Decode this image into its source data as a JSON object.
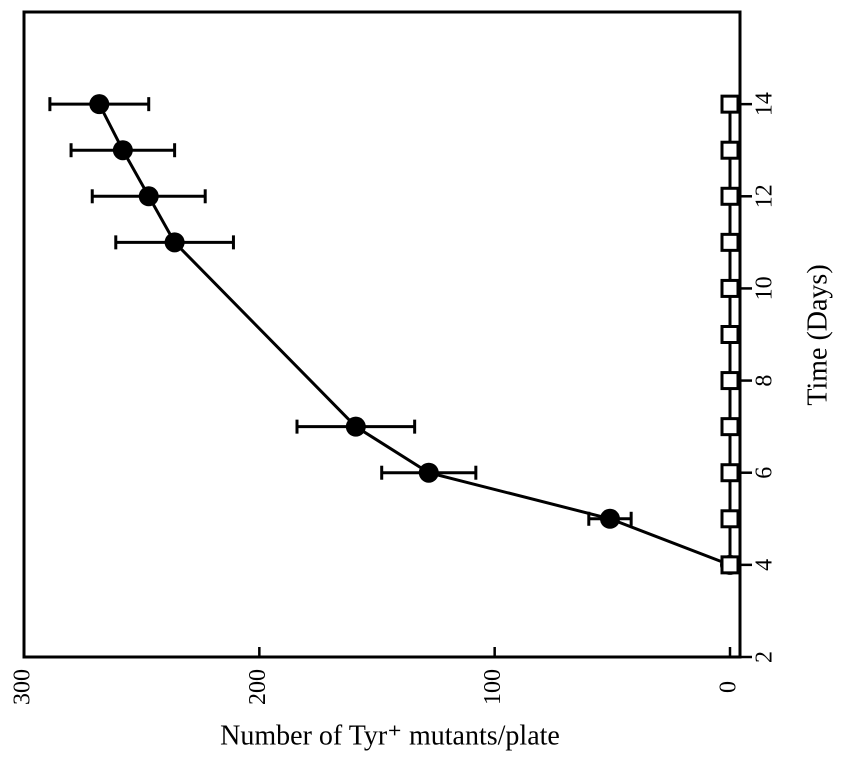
{
  "chart_data": {
    "type": "line",
    "xlabel": "Number of Tyr⁺ mutants/plate",
    "ylabel": "Time (Days)",
    "value_axis": "horizontal",
    "value_axis_reversed": true,
    "vlim": [
      0,
      300
    ],
    "vticks": [
      0,
      100,
      200,
      300
    ],
    "tlim": [
      2,
      16
    ],
    "tticks": [
      2,
      4,
      6,
      8,
      10,
      12,
      14
    ],
    "series": [
      {
        "marker": "circle",
        "color": "#000000",
        "x": [
          4,
          5,
          6,
          7,
          11,
          12,
          13,
          14
        ],
        "values": [
          0,
          51,
          128,
          159,
          236,
          247,
          258,
          268
        ],
        "errors": [
          0,
          9,
          20,
          25,
          25,
          24,
          22,
          21
        ]
      },
      {
        "marker": "square",
        "color": "#000000",
        "x": [
          4,
          5,
          6,
          7,
          8,
          9,
          10,
          11,
          12,
          13,
          14
        ],
        "values": [
          0,
          0,
          0,
          0,
          0,
          0,
          0,
          0,
          0,
          0,
          0
        ]
      }
    ]
  }
}
